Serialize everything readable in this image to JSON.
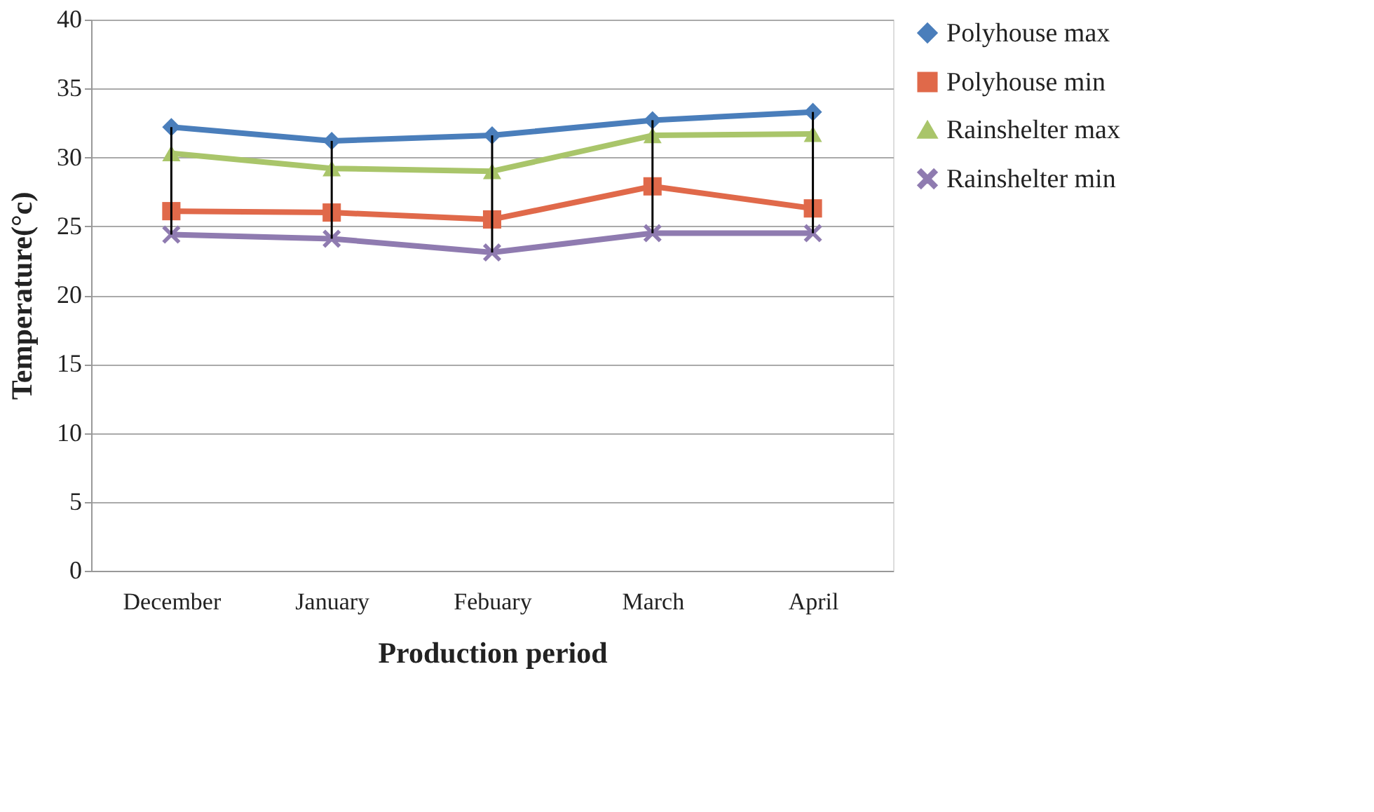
{
  "chart_data": {
    "type": "line",
    "xlabel": "Production period",
    "ylabel": "Temperature(°c)",
    "categories": [
      "December",
      "January",
      "Febuary",
      "March",
      "April"
    ],
    "ylim": [
      0,
      40
    ],
    "yticks": [
      0,
      5,
      10,
      15,
      20,
      25,
      30,
      35,
      40
    ],
    "grid": "y",
    "legend": "right",
    "series": [
      {
        "name": "Polyhouse max",
        "color": "#4a7ebb",
        "marker": "diamond",
        "values": [
          32.2,
          31.2,
          31.6,
          32.7,
          33.3
        ],
        "errors": [
          [
            24.4,
            32.2
          ],
          [
            24.1,
            31.2
          ],
          [
            23.1,
            31.6
          ],
          [
            24.5,
            32.7
          ],
          [
            24.5,
            33.3
          ]
        ]
      },
      {
        "name": "Polyhouse min",
        "color": "#e0694a",
        "marker": "square",
        "values": [
          26.1,
          26.0,
          25.5,
          27.9,
          26.3
        ]
      },
      {
        "name": "Rainshelter max",
        "color": "#a9c56a",
        "marker": "triangle",
        "values": [
          30.3,
          29.2,
          29.0,
          31.6,
          31.7
        ]
      },
      {
        "name": "Rainshelter min",
        "color": "#8f7bb0",
        "marker": "cross",
        "values": [
          24.4,
          24.1,
          23.1,
          24.5,
          24.5
        ]
      }
    ]
  }
}
